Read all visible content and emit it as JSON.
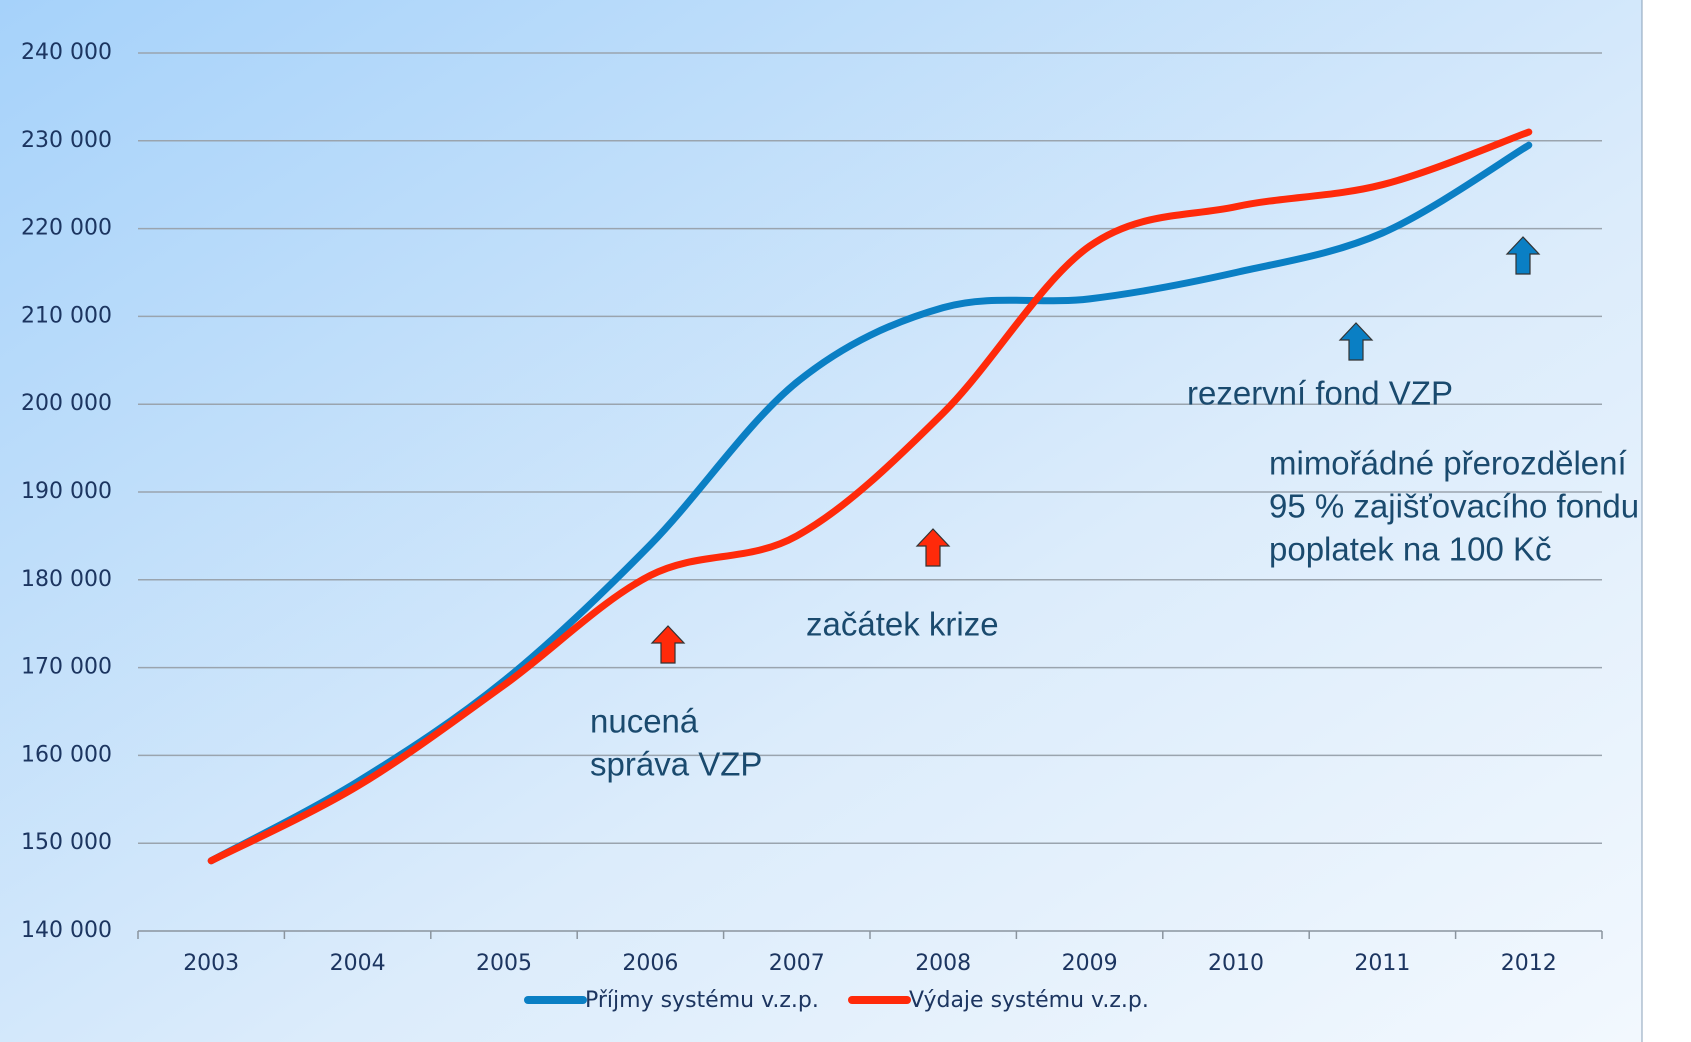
{
  "chart_data": {
    "type": "line",
    "categories": [
      "2003",
      "2004",
      "2005",
      "2006",
      "2007",
      "2008",
      "2009",
      "2010",
      "2011",
      "2012"
    ],
    "series": [
      {
        "name": "Příjmy systému v.z.p.",
        "color": "#0a7fc4",
        "values": [
          148000,
          157000,
          168500,
          184000,
          202500,
          211000,
          212000,
          215000,
          219500,
          229500
        ]
      },
      {
        "name": "Výdaje systému v.z.p.",
        "color": "#ff2a0a",
        "values": [
          148000,
          156500,
          168000,
          180500,
          185000,
          199000,
          218000,
          222500,
          225000,
          231000
        ]
      }
    ],
    "ylim": [
      140000,
      240000
    ],
    "yticks": [
      {
        "value": 140000,
        "label": "140 000"
      },
      {
        "value": 150000,
        "label": "150 000"
      },
      {
        "value": 160000,
        "label": "160 000"
      },
      {
        "value": 170000,
        "label": "170 000"
      },
      {
        "value": 180000,
        "label": "180 000"
      },
      {
        "value": 190000,
        "label": "190 000"
      },
      {
        "value": 200000,
        "label": "200 000"
      },
      {
        "value": 210000,
        "label": "210 000"
      },
      {
        "value": 220000,
        "label": "220 000"
      },
      {
        "value": 230000,
        "label": "230 000"
      },
      {
        "value": 240000,
        "label": "240 000"
      }
    ],
    "grid": true,
    "legend": "bottom",
    "annotations": [
      [
        "nucená",
        "správa VZP"
      ],
      [
        "začátek krize"
      ],
      [
        "rezervní fond VZP"
      ],
      [
        "mimořádné přerozdělení",
        "95 % zajišťovacího fondu",
        "poplatek na 100 Kč"
      ]
    ]
  }
}
